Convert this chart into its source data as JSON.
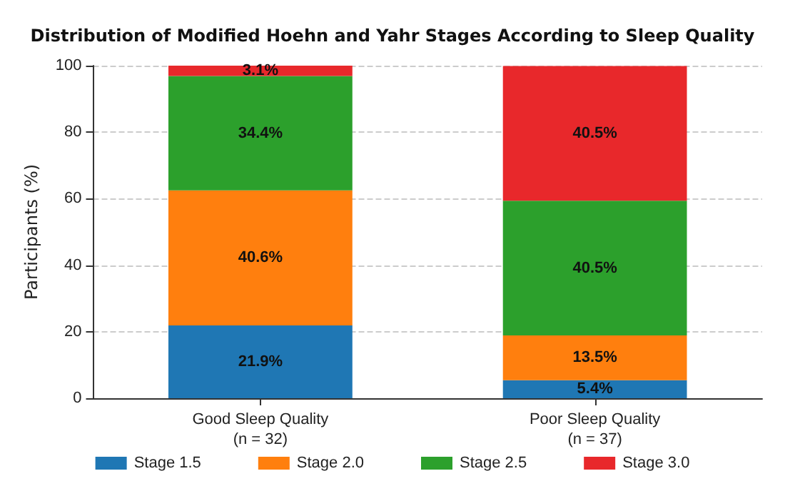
{
  "chart_data": {
    "type": "bar",
    "title": "Distribution of Modified Hoehn and Yahr Stages According to Sleep Quality",
    "ylabel": "Participants (%)",
    "categories": [
      "Good Sleep Quality\n(n = 32)",
      "Poor Sleep Quality\n(n = 37)"
    ],
    "stacked": true,
    "series": [
      {
        "name": "Stage 1.5",
        "color": "#1f77b4",
        "values": [
          21.9,
          5.4
        ],
        "value_labels": [
          "21.9%",
          "5.4%"
        ]
      },
      {
        "name": "Stage 2.0",
        "color": "#ff7f0e",
        "values": [
          40.6,
          13.5
        ],
        "value_labels": [
          "40.6%",
          "13.5%"
        ]
      },
      {
        "name": "Stage 2.5",
        "color": "#2ca02c",
        "values": [
          34.4,
          40.5
        ],
        "value_labels": [
          "34.4%",
          "40.5%"
        ]
      },
      {
        "name": "Stage 3.0",
        "color": "#e8282b",
        "values": [
          3.1,
          40.5
        ],
        "value_labels": [
          "3.1%",
          "40.5%"
        ]
      }
    ],
    "ylim": [
      0,
      100
    ],
    "yticks": [
      0,
      20,
      40,
      60,
      80,
      100
    ],
    "grid": "y",
    "legend": "bottom"
  }
}
